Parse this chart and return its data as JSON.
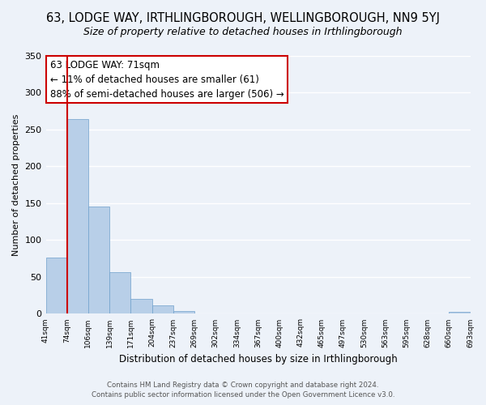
{
  "title": "63, LODGE WAY, IRTHLINGBOROUGH, WELLINGBOROUGH, NN9 5YJ",
  "subtitle": "Size of property relative to detached houses in Irthlingborough",
  "xlabel": "Distribution of detached houses by size in Irthlingborough",
  "ylabel": "Number of detached properties",
  "bar_values": [
    76,
    264,
    146,
    57,
    20,
    11,
    4,
    0,
    0,
    0,
    0,
    0,
    0,
    0,
    0,
    0,
    0,
    0,
    0,
    3
  ],
  "bar_labels": [
    "41sqm",
    "74sqm",
    "106sqm",
    "139sqm",
    "171sqm",
    "204sqm",
    "237sqm",
    "269sqm",
    "302sqm",
    "334sqm",
    "367sqm",
    "400sqm",
    "432sqm",
    "465sqm",
    "497sqm",
    "530sqm",
    "563sqm",
    "595sqm",
    "628sqm",
    "660sqm",
    "693sqm"
  ],
  "bar_color": "#b8cfe8",
  "bar_edge_color": "#6fa0cc",
  "annotation_title": "63 LODGE WAY: 71sqm",
  "annotation_line1": "← 11% of detached houses are smaller (61)",
  "annotation_line2": "88% of semi-detached houses are larger (506) →",
  "annotation_box_color": "#ffffff",
  "annotation_box_edge": "#cc0000",
  "marker_line_color": "#cc0000",
  "ylim": [
    0,
    350
  ],
  "yticks": [
    0,
    50,
    100,
    150,
    200,
    250,
    300,
    350
  ],
  "footer_line1": "Contains HM Land Registry data © Crown copyright and database right 2024.",
  "footer_line2": "Contains public sector information licensed under the Open Government Licence v3.0.",
  "background_color": "#edf2f9",
  "grid_color": "#ffffff",
  "title_fontsize": 10.5,
  "subtitle_fontsize": 9
}
